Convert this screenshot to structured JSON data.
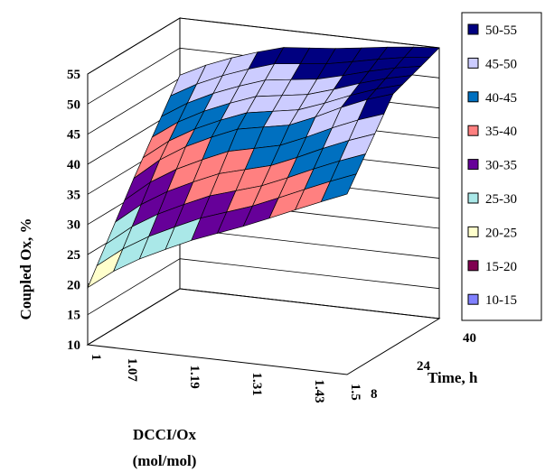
{
  "chart_data": {
    "type": "surface",
    "ylabel": "Coupled Ox, %",
    "xlabel": "DCCI/Ox (mol/mol)",
    "xlabel_lines": [
      "DCCI/Ox",
      "(mol/mol)"
    ],
    "zlabel": "Time, h",
    "ylim": [
      10,
      55
    ],
    "y_ticks": [
      "10",
      "15",
      "20",
      "25",
      "30",
      "35",
      "40",
      "45",
      "50",
      "55"
    ],
    "x_ticks": [
      "1",
      "1.07",
      "1.19",
      "1.31",
      "1.43",
      "1.5"
    ],
    "z_ticks": [
      "8",
      "24",
      "40"
    ],
    "x": [
      1,
      1.07,
      1.19,
      1.31,
      1.43,
      1.5
    ],
    "z": [
      8,
      24,
      40
    ],
    "surface_values": [
      [
        19.5,
        24,
        29,
        33,
        37.5,
        40
      ],
      [
        33,
        38,
        43,
        45,
        50,
        52
      ],
      [
        45.5,
        48.5,
        52,
        53,
        54.5,
        55
      ]
    ],
    "legend": {
      "position": "right",
      "entries": [
        {
          "label": "50-55",
          "color": "#000080"
        },
        {
          "label": "45-50",
          "color": "#ccccff"
        },
        {
          "label": "40-45",
          "color": "#0070c0"
        },
        {
          "label": "35-40",
          "color": "#ff8080"
        },
        {
          "label": "30-35",
          "color": "#660099"
        },
        {
          "label": "25-30",
          "color": "#aae8e8"
        },
        {
          "label": "20-25",
          "color": "#ffffcc"
        },
        {
          "label": "15-20",
          "color": "#800050"
        },
        {
          "label": "10-15",
          "color": "#8080ff"
        }
      ]
    },
    "grid": true
  }
}
